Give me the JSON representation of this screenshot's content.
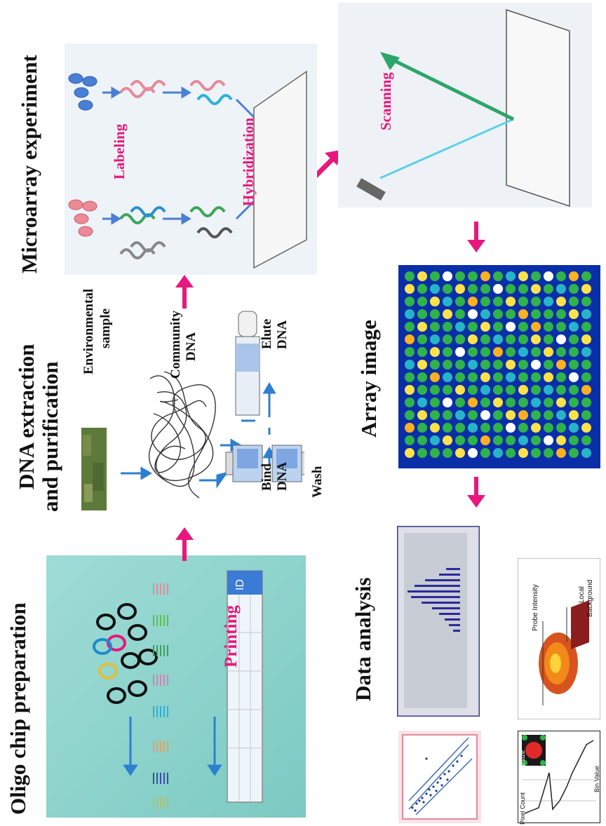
{
  "sections": {
    "oligo": "Oligo chip preparation",
    "dna_line1": "DNA extraction",
    "dna_line2": "and purification",
    "microarray": "Microarray experiment",
    "array_image": "Array image",
    "data_analysis": "Data analysis"
  },
  "labels": {
    "printing": "Printing",
    "env_line1": "Environmental",
    "env_line2": "sample",
    "comm_line1": "Community",
    "comm_line2": "DNA",
    "bind_line1": "Bind",
    "bind_line2": "DNA",
    "wash": "Wash",
    "elute_line1": "Elute",
    "elute_line2": "DNA",
    "labeling": "Labeling",
    "hybridization": "Hybridization",
    "scanning": "Scanning",
    "chip_id": "ID",
    "probe_intensity": "Probe Intensity",
    "local_line1": "Local",
    "local_line2": "Background",
    "local_size": "Local size",
    "pixel_count": "Pixel Count",
    "bin_value": "Bin Value"
  },
  "colors": {
    "accent_pink": "#e8177d",
    "arrow_blue": "#2d7fd0",
    "chip_teal": "#8fd3cd",
    "array_bg": "#0a2ea8"
  }
}
